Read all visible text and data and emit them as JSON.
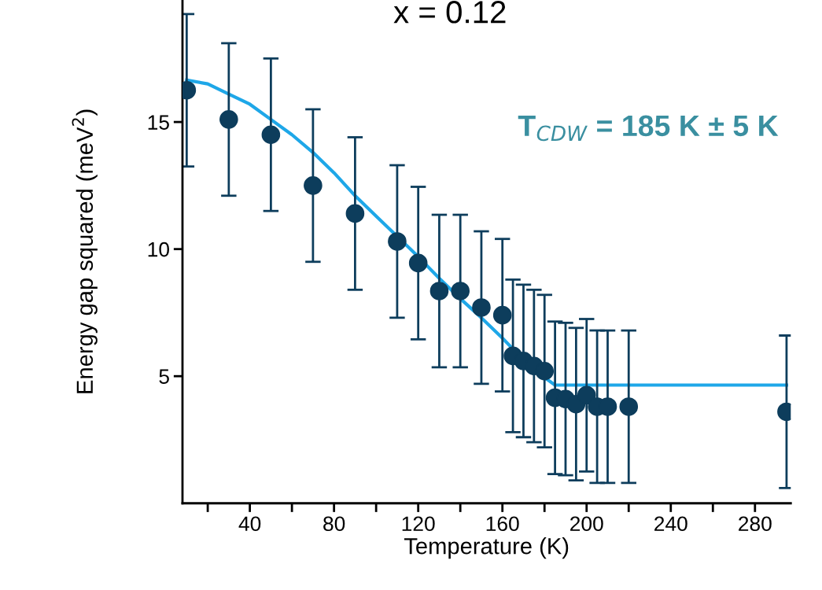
{
  "chart_data": {
    "type": "scatter",
    "title": "x = 0.12",
    "xlabel": "Temperature (K)",
    "ylabel": "Energy gap squared (meV$^{2}$)",
    "annotations": [
      "T$_{CDW}$ = 185 K ± 5 K"
    ],
    "x": [
      10,
      30,
      50,
      70,
      90,
      110,
      120,
      130,
      140,
      150,
      160,
      165,
      170,
      175,
      180,
      185,
      190,
      195,
      200,
      205,
      210,
      220,
      295
    ],
    "series": [
      {
        "color": "#0d3d5c",
        "marker": "circle",
        "values": [
          16.25,
          15.1,
          14.5,
          12.5,
          11.4,
          10.3,
          9.45,
          8.35,
          8.35,
          7.7,
          7.4,
          5.8,
          5.6,
          5.4,
          5.2,
          4.15,
          4.1,
          3.9,
          4.25,
          3.8,
          3.8,
          3.8,
          3.6
        ],
        "errors": [
          3,
          3,
          3,
          3,
          3,
          3,
          3,
          3,
          3,
          3,
          3,
          3,
          3,
          3,
          3,
          3,
          3,
          3,
          3,
          3,
          3,
          3,
          3
        ]
      },
      {
        "type": "line",
        "color": "#1ea7e8",
        "marker": "none",
        "x": [
          10,
          20,
          30,
          40,
          50,
          60,
          70,
          80,
          90,
          100,
          120,
          130,
          140,
          150,
          160,
          165,
          180,
          185,
          295
        ],
        "values": [
          16.65,
          16.5,
          16.1,
          15.7,
          15.1,
          14.5,
          13.8,
          13.0,
          12.1,
          11.3,
          9.7,
          8.85,
          8.05,
          7.3,
          6.5,
          6.07,
          4.95,
          4.65,
          4.65
        ]
      }
    ],
    "xlim": [
      8,
      297
    ],
    "ylim": [
      0,
      19.8
    ],
    "xticks": [
      {
        "value": 20,
        "label": null
      },
      40,
      {
        "value": 60,
        "label": null
      },
      80,
      {
        "value": 100,
        "label": null
      },
      120,
      {
        "value": 140,
        "label": null
      },
      160,
      {
        "value": 180,
        "label": null
      },
      200,
      {
        "value": 220,
        "label": null
      },
      240,
      {
        "value": 260,
        "label": null
      },
      280
    ],
    "yticks": [
      5,
      10,
      15
    ],
    "grid": false,
    "legend": false
  }
}
